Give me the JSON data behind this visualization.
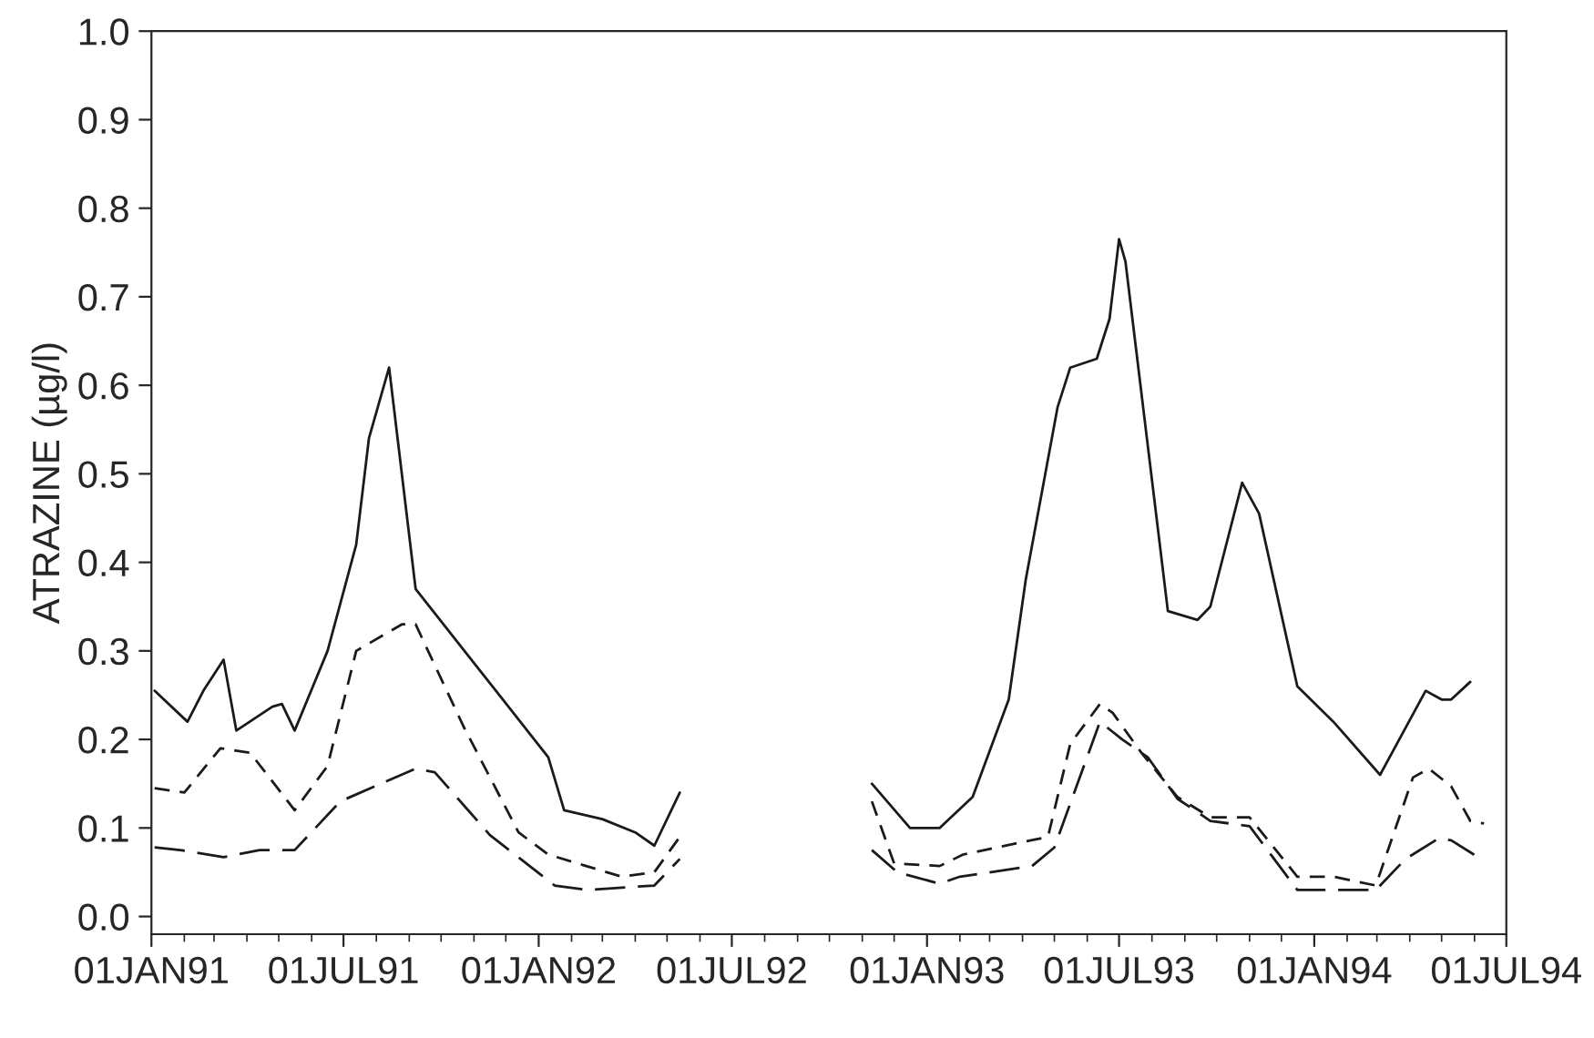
{
  "chart_data": {
    "type": "line",
    "ylabel": "ATRAZINE (µg/l)",
    "xlim": [
      "1991-01-01",
      "1994-07-01"
    ],
    "xticks": [
      {
        "value": "1991-01-01",
        "label": "01JAN91"
      },
      {
        "value": "1991-07-01",
        "label": "01JUL91"
      },
      {
        "value": "1992-01-01",
        "label": "01JAN92"
      },
      {
        "value": "1992-07-01",
        "label": "01JUL92"
      },
      {
        "value": "1993-01-01",
        "label": "01JAN93"
      },
      {
        "value": "1993-07-01",
        "label": "01JUL93"
      },
      {
        "value": "1994-01-01",
        "label": "01JAN94"
      },
      {
        "value": "1994-07-01",
        "label": "01JUL94"
      }
    ],
    "ylim": [
      -0.02,
      1.0
    ],
    "yticks": [
      {
        "value": 0,
        "label": "0.0"
      },
      {
        "value": 0.1,
        "label": "0.1"
      },
      {
        "value": 0.2,
        "label": "0.2"
      },
      {
        "value": 0.3,
        "label": "0.3"
      },
      {
        "value": 0.4,
        "label": "0.4"
      },
      {
        "value": 0.5,
        "label": "0.5"
      },
      {
        "value": 0.6,
        "label": "0.6"
      },
      {
        "value": 0.7,
        "label": "0.7"
      },
      {
        "value": 0.8,
        "label": "0.8"
      },
      {
        "value": 0.9,
        "label": "0.9"
      },
      {
        "value": 1.0,
        "label": "1.0"
      }
    ],
    "grid": false,
    "marker": "none",
    "series": [
      {
        "color": "#1a1a1a",
        "line_style": "solid",
        "x": [
          "1991-01-04",
          "1991-02-04",
          "1991-02-19",
          "1991-03-10",
          "1991-03-22",
          "1991-04-25",
          "1991-05-04",
          "1991-05-16",
          "1991-06-16",
          "1991-07-13",
          "1991-07-25",
          "1991-08-13",
          "1991-09-07",
          "1992-01-10",
          "1992-01-25",
          "1992-03-01",
          "1992-04-01",
          "1992-04-19",
          "1992-05-13",
          "1992-09-01",
          "1992-11-10",
          "1992-12-16",
          "1993-01-13",
          "1993-02-13",
          "1993-03-19",
          "1993-04-04",
          "1993-05-04",
          "1993-05-16",
          "1993-06-10",
          "1993-06-22",
          "1993-07-01",
          "1993-07-07",
          "1993-08-16",
          "1993-09-13",
          "1993-09-25",
          "1993-10-25",
          "1993-11-10",
          "1993-12-16",
          "1994-01-19",
          "1994-03-04",
          "1994-04-16",
          "1994-05-01",
          "1994-05-10",
          "1994-05-28"
        ],
        "values": [
          0.255,
          0.22,
          0.255,
          0.29,
          0.21,
          0.237,
          0.24,
          0.21,
          0.3,
          0.42,
          0.54,
          0.62,
          0.37,
          0.18,
          0.12,
          0.11,
          0.095,
          0.08,
          0.14,
          null,
          0.15,
          0.1,
          0.1,
          0.135,
          0.245,
          0.38,
          0.575,
          0.62,
          0.63,
          0.675,
          0.765,
          0.74,
          0.345,
          0.335,
          0.35,
          0.49,
          0.455,
          0.26,
          0.22,
          0.16,
          0.255,
          0.245,
          0.245,
          0.265
        ]
      },
      {
        "color": "#1a1a1a",
        "line_style": "dashed",
        "x": [
          "1991-01-04",
          "1991-02-01",
          "1991-03-07",
          "1991-04-04",
          "1991-05-16",
          "1991-06-16",
          "1991-07-13",
          "1991-08-25",
          "1991-09-07",
          "1991-10-22",
          "1991-12-13",
          "1992-01-10",
          "1992-03-19",
          "1992-04-19",
          "1992-05-13",
          "1992-09-01",
          "1992-11-10",
          "1992-12-01",
          "1993-01-13",
          "1993-02-04",
          "1993-04-25",
          "1993-05-16",
          "1993-06-13",
          "1993-06-25",
          "1993-07-22",
          "1993-08-25",
          "1993-09-25",
          "1993-11-01",
          "1993-12-16",
          "1994-01-19",
          "1994-02-28",
          "1994-04-04",
          "1994-04-19",
          "1994-05-10",
          "1994-05-28",
          "1994-06-10"
        ],
        "values": [
          0.145,
          0.14,
          0.19,
          0.185,
          0.12,
          0.17,
          0.3,
          0.33,
          0.33,
          0.215,
          0.095,
          0.07,
          0.045,
          0.05,
          0.09,
          null,
          0.13,
          0.06,
          0.057,
          0.07,
          0.09,
          0.195,
          0.24,
          0.23,
          0.185,
          0.135,
          0.112,
          0.112,
          0.045,
          0.045,
          0.035,
          0.157,
          0.167,
          0.147,
          0.108,
          0.105
        ]
      },
      {
        "color": "#1a1a1a",
        "line_style": "dashed",
        "x": [
          "1991-01-04",
          "1991-01-28",
          "1991-03-10",
          "1991-04-13",
          "1991-05-16",
          "1991-06-28",
          "1991-09-07",
          "1991-09-25",
          "1991-11-16",
          "1992-01-16",
          "1992-02-16",
          "1992-04-19",
          "1992-05-13",
          "1992-09-01",
          "1992-11-10",
          "1992-12-04",
          "1993-01-13",
          "1993-02-01",
          "1993-04-10",
          "1993-05-01",
          "1993-06-13",
          "1993-07-04",
          "1993-07-28",
          "1993-08-25",
          "1993-09-25",
          "1993-11-01",
          "1993-12-16",
          "1994-01-13",
          "1994-02-28",
          "1994-03-28",
          "1994-04-28",
          "1994-05-10",
          "1994-06-07"
        ],
        "values": [
          0.078,
          0.075,
          0.067,
          0.075,
          0.075,
          0.13,
          0.167,
          0.163,
          0.092,
          0.035,
          0.03,
          0.035,
          0.065,
          null,
          0.075,
          0.05,
          0.037,
          0.045,
          0.057,
          0.078,
          0.22,
          0.2,
          0.18,
          0.133,
          0.108,
          0.102,
          0.03,
          0.03,
          0.03,
          0.065,
          0.088,
          0.086,
          0.065
        ]
      }
    ]
  }
}
